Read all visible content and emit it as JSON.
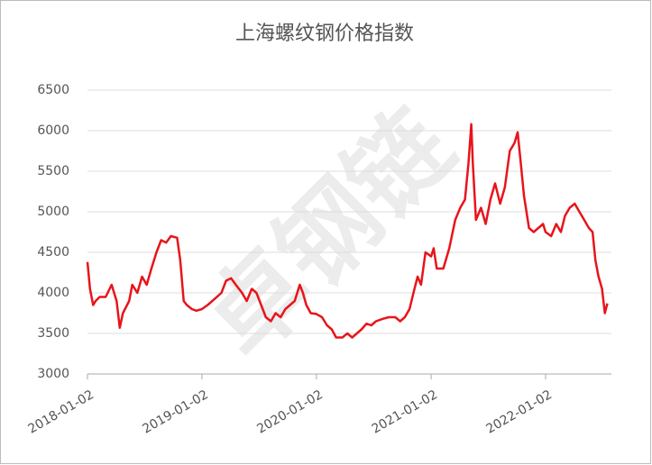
{
  "chart_data": {
    "type": "line",
    "title": "上海螺纹钢价格指数",
    "watermark": "卓钢链",
    "color": "#e8141b",
    "grid": true,
    "x": [
      "2018-01-02",
      "2018-01-10",
      "2018-01-20",
      "2018-01-28",
      "2018-02-10",
      "2018-03-01",
      "2018-03-20",
      "2018-04-05",
      "2018-04-15",
      "2018-04-25",
      "2018-05-15",
      "2018-05-25",
      "2018-06-10",
      "2018-06-25",
      "2018-07-10",
      "2018-07-25",
      "2018-08-10",
      "2018-08-25",
      "2018-09-10",
      "2018-09-25",
      "2018-10-15",
      "2018-10-25",
      "2018-11-05",
      "2018-11-15",
      "2018-12-01",
      "2018-12-15",
      "2019-01-02",
      "2019-01-20",
      "2019-02-10",
      "2019-03-05",
      "2019-03-20",
      "2019-04-05",
      "2019-04-20",
      "2019-05-10",
      "2019-05-25",
      "2019-06-10",
      "2019-06-25",
      "2019-07-10",
      "2019-07-25",
      "2019-08-10",
      "2019-08-25",
      "2019-09-10",
      "2019-09-25",
      "2019-10-10",
      "2019-10-25",
      "2019-11-10",
      "2019-11-20",
      "2019-12-01",
      "2019-12-15",
      "2020-01-02",
      "2020-01-20",
      "2020-02-05",
      "2020-02-20",
      "2020-03-05",
      "2020-03-25",
      "2020-04-10",
      "2020-04-25",
      "2020-05-10",
      "2020-05-25",
      "2020-06-10",
      "2020-06-25",
      "2020-07-10",
      "2020-08-01",
      "2020-08-20",
      "2020-09-10",
      "2020-09-25",
      "2020-10-10",
      "2020-10-25",
      "2020-11-10",
      "2020-11-20",
      "2020-12-01",
      "2020-12-15",
      "2021-01-02",
      "2021-01-10",
      "2021-01-20",
      "2021-02-10",
      "2021-03-01",
      "2021-03-20",
      "2021-04-05",
      "2021-04-20",
      "2021-05-01",
      "2021-05-10",
      "2021-05-15",
      "2021-05-25",
      "2021-06-10",
      "2021-06-25",
      "2021-07-10",
      "2021-07-25",
      "2021-08-10",
      "2021-08-25",
      "2021-09-10",
      "2021-09-25",
      "2021-10-05",
      "2021-10-15",
      "2021-10-25",
      "2021-11-10",
      "2021-11-25",
      "2021-12-10",
      "2021-12-25",
      "2022-01-02",
      "2022-01-20",
      "2022-02-05",
      "2022-02-20",
      "2022-03-05",
      "2022-03-20",
      "2022-04-05",
      "2022-04-20",
      "2022-05-05",
      "2022-05-20",
      "2022-06-01",
      "2022-06-10",
      "2022-06-20",
      "2022-07-01",
      "2022-07-10",
      "2022-07-18"
    ],
    "values": [
      4380,
      4050,
      3850,
      3900,
      3950,
      3950,
      4100,
      3900,
      3570,
      3750,
      3900,
      4100,
      4000,
      4200,
      4100,
      4300,
      4500,
      4650,
      4620,
      4700,
      4680,
      4400,
      3900,
      3850,
      3800,
      3780,
      3800,
      3850,
      3920,
      4000,
      4150,
      4180,
      4100,
      4000,
      3900,
      4050,
      4000,
      3850,
      3700,
      3650,
      3750,
      3700,
      3800,
      3850,
      3900,
      4100,
      4000,
      3850,
      3750,
      3740,
      3700,
      3600,
      3550,
      3450,
      3450,
      3500,
      3450,
      3500,
      3550,
      3620,
      3600,
      3650,
      3680,
      3700,
      3700,
      3650,
      3700,
      3800,
      4050,
      4200,
      4100,
      4500,
      4450,
      4550,
      4300,
      4300,
      4550,
      4900,
      5050,
      5150,
      5600,
      6080,
      5600,
      4900,
      5050,
      4850,
      5150,
      5350,
      5100,
      5300,
      5750,
      5850,
      5980,
      5600,
      5200,
      4800,
      4750,
      4800,
      4850,
      4750,
      4700,
      4850,
      4750,
      4950,
      5050,
      5100,
      5000,
      4900,
      4800,
      4750,
      4400,
      4200,
      4050,
      3750,
      3870
    ],
    "xlim": [
      "2018-01-02",
      "2022-07-31"
    ],
    "xticks": [
      "2018-01-02",
      "2019-01-02",
      "2020-01-02",
      "2021-01-02",
      "2022-01-02"
    ],
    "ylim": [
      3000,
      6500
    ],
    "yticks": [
      3000,
      3500,
      4000,
      4500,
      5000,
      5500,
      6000,
      6500
    ]
  }
}
